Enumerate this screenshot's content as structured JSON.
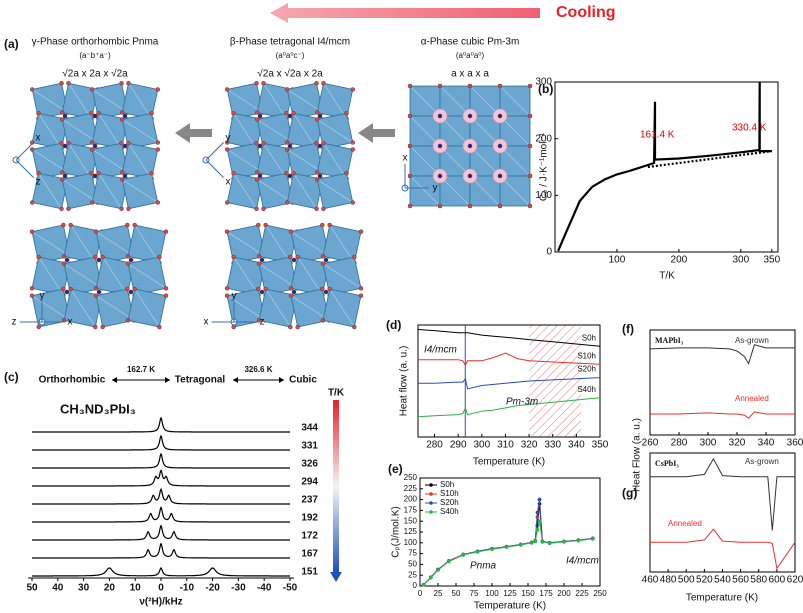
{
  "diagram": {
    "cooling": "Cooling",
    "label": "(a)",
    "phases": [
      {
        "name": "γ-Phase orthorhombic Pnma",
        "glazer": "(a⁻b⁺a⁻)",
        "cell": "√2a x 2a x √2a"
      },
      {
        "name": "β-Phase tetragonal I4/mcm",
        "glazer": "(a⁰a⁰c⁻)",
        "cell": "√2a x √2a x 2a"
      },
      {
        "name": "α-Phase cubic Pm-3m",
        "glazer": "(a⁰a⁰a⁰)",
        "cell": "a x a x a"
      }
    ],
    "views": [
      [
        "x",
        "z"
      ],
      [
        "y",
        "x"
      ],
      [
        "x",
        "y"
      ],
      [
        "y",
        "z",
        "x"
      ],
      [
        "y",
        "x",
        "z"
      ]
    ]
  },
  "chart_data": [
    {
      "type": "line",
      "label": "(b)",
      "xlabel": "T/K",
      "ylabel": "Cₚ / J·K⁻¹mol⁻¹",
      "xlim": [
        0,
        360
      ],
      "ylim": [
        0,
        300
      ],
      "xticks": [
        100,
        200,
        300,
        350
      ],
      "yticks": [
        0,
        100,
        200,
        300
      ],
      "annotations": [
        "161.4 K",
        "330.4 K"
      ],
      "series": [
        {
          "color": "#000000",
          "x": [
            5,
            20,
            40,
            60,
            80,
            100,
            120,
            140,
            160,
            161.4,
            161.5,
            200,
            250,
            300,
            330,
            330.4,
            330.5,
            350
          ],
          "values": [
            2,
            40,
            90,
            115,
            128,
            137,
            143,
            150,
            157,
            265,
            163,
            165,
            170,
            176,
            180,
            300,
            178,
            178
          ]
        },
        {
          "color": "#000000",
          "dash": true,
          "x": [
            150,
            350
          ],
          "values": [
            150,
            178
          ]
        }
      ]
    },
    {
      "type": "spectra",
      "label": "(c)",
      "title": "CH₃ND₃PbI₃",
      "phases": [
        "Orthorhombic",
        "Tetragonal",
        "Cubic"
      ],
      "transitions": [
        "162.7 K",
        "326.6 K"
      ],
      "colorbar_label": "T/K",
      "xlabel": "ν(²H)/kHz",
      "xlim": [
        50,
        -50
      ],
      "xticks": [
        50,
        40,
        30,
        20,
        10,
        0,
        -10,
        -20,
        -30,
        -40,
        -50
      ],
      "series": [
        {
          "name": "344",
          "peaks": [
            0
          ]
        },
        {
          "name": "331",
          "peaks": [
            0
          ]
        },
        {
          "name": "326",
          "peaks": [
            0
          ]
        },
        {
          "name": "294",
          "peaks": [
            2,
            0,
            -2
          ]
        },
        {
          "name": "237",
          "peaks": [
            3,
            0,
            -3
          ]
        },
        {
          "name": "192",
          "peaks": [
            4,
            0,
            -4
          ]
        },
        {
          "name": "172",
          "peaks": [
            5,
            0,
            -5
          ]
        },
        {
          "name": "167",
          "peaks": [
            5,
            0,
            -5
          ]
        },
        {
          "name": "151",
          "peaks": [
            20,
            0,
            -20
          ]
        }
      ]
    },
    {
      "type": "line",
      "label": "(d)",
      "xlabel": "Temperature (K)",
      "ylabel": "Heat flow (a. u.)",
      "xlim": [
        273,
        350
      ],
      "ylim": [
        0,
        10
      ],
      "xticks": [
        280,
        290,
        300,
        310,
        320,
        330,
        340,
        350
      ],
      "annotations": [
        "I4/mcm",
        "Pm-3m"
      ],
      "vline": 293,
      "shaded": [
        320,
        342
      ],
      "x": [
        273,
        280,
        290,
        292,
        293,
        294,
        300,
        305,
        310,
        315,
        320,
        330,
        340,
        350
      ],
      "series": [
        {
          "name": "S0h",
          "color": "#000000",
          "values": [
            9.6,
            9.5,
            9.3,
            9.3,
            9.3,
            9.3,
            9.1,
            9.0,
            8.9,
            8.8,
            8.7,
            8.5,
            8.3,
            8.1
          ]
        },
        {
          "name": "S10h",
          "color": "#e8312a",
          "values": [
            6.9,
            6.9,
            6.9,
            6.8,
            6.4,
            6.8,
            6.8,
            7.1,
            7.5,
            7.0,
            6.8,
            6.7,
            6.6,
            6.5
          ]
        },
        {
          "name": "S20h",
          "color": "#2a4db5",
          "values": [
            4.8,
            4.8,
            4.9,
            4.9,
            5.2,
            4.3,
            4.6,
            4.7,
            4.8,
            4.9,
            5.0,
            5.1,
            5.2,
            5.3
          ]
        },
        {
          "name": "S40h",
          "color": "#2fb34a",
          "values": [
            1.8,
            1.9,
            2.0,
            2.1,
            2.6,
            2.0,
            2.3,
            2.4,
            2.6,
            2.8,
            2.9,
            3.1,
            3.3,
            3.5
          ]
        }
      ]
    },
    {
      "type": "line",
      "label": "(e)",
      "xlabel": "Temperature (K)",
      "ylabel": "Cₚ(J/mol.K)",
      "xlim": [
        0,
        250
      ],
      "ylim": [
        0,
        250
      ],
      "xticks": [
        0,
        25,
        50,
        75,
        100,
        125,
        150,
        175,
        200,
        225,
        250
      ],
      "yticks": [
        0,
        25,
        50,
        75,
        100,
        125,
        150,
        175,
        200,
        225,
        250
      ],
      "markers": true,
      "legend": "upper left",
      "annotations": [
        "Pnma",
        "I4/mcm"
      ],
      "x": [
        5,
        15,
        25,
        40,
        60,
        80,
        100,
        120,
        140,
        155,
        160,
        163,
        166,
        170,
        180,
        200,
        220,
        240
      ],
      "series": [
        {
          "name": "S0h",
          "color": "#000000",
          "values": [
            3,
            20,
            38,
            58,
            73,
            80,
            86,
            91,
            96,
            101,
            104,
            140,
            190,
            103,
            100,
            103,
            106,
            110
          ]
        },
        {
          "name": "S10h",
          "color": "#e8312a",
          "values": [
            3,
            20,
            38,
            58,
            73,
            80,
            86,
            91,
            96,
            101,
            105,
            160,
            200,
            102,
            100,
            103,
            106,
            110
          ]
        },
        {
          "name": "S20h",
          "color": "#2a4db5",
          "values": [
            3,
            20,
            38,
            57,
            72,
            80,
            86,
            91,
            96,
            100,
            104,
            170,
            200,
            103,
            100,
            103,
            106,
            110
          ]
        },
        {
          "name": "S40h",
          "color": "#2fb34a",
          "values": [
            3,
            19,
            37,
            57,
            72,
            79,
            85,
            90,
            95,
            100,
            103,
            130,
            150,
            102,
            99,
            102,
            105,
            109
          ]
        }
      ]
    },
    {
      "type": "line",
      "label": "(f)",
      "title": "MAPbI₃",
      "ylabel": "Heat Flow (a. u.)",
      "xlim": [
        260,
        360
      ],
      "ylim": [
        0,
        10
      ],
      "xticks": [
        260,
        280,
        300,
        320,
        340,
        360
      ],
      "x": [
        260,
        280,
        300,
        315,
        320,
        325,
        328,
        332,
        340,
        360
      ],
      "series": [
        {
          "name": "As-grown",
          "color": "#333333",
          "values": [
            8.2,
            8.3,
            8.3,
            8.2,
            8.0,
            7.5,
            6.8,
            8.6,
            8.3,
            8.3
          ]
        },
        {
          "name": "Annealed",
          "color": "#e8312a",
          "values": [
            2.0,
            2.0,
            2.1,
            2.0,
            2.0,
            1.9,
            1.6,
            2.2,
            2.0,
            2.0
          ]
        }
      ]
    },
    {
      "type": "line",
      "label": "(g)",
      "title": "CsPbI₃",
      "xlabel": "Temperature (K)",
      "xlim": [
        460,
        620
      ],
      "ylim": [
        0,
        10
      ],
      "xticks": [
        460,
        480,
        500,
        520,
        540,
        560,
        580,
        600,
        620
      ],
      "x": [
        460,
        500,
        520,
        530,
        540,
        560,
        590,
        595,
        600,
        620
      ],
      "series": [
        {
          "name": "As-grown",
          "color": "#333333",
          "values": [
            8,
            8,
            8.2,
            9.5,
            8.1,
            8,
            8,
            3.5,
            8,
            8
          ]
        },
        {
          "name": "Annealed",
          "color": "#e8312a",
          "values": [
            2.5,
            2.5,
            2.7,
            3.6,
            2.6,
            2.5,
            2.5,
            2.4,
            0.3,
            2.5
          ]
        }
      ]
    }
  ]
}
